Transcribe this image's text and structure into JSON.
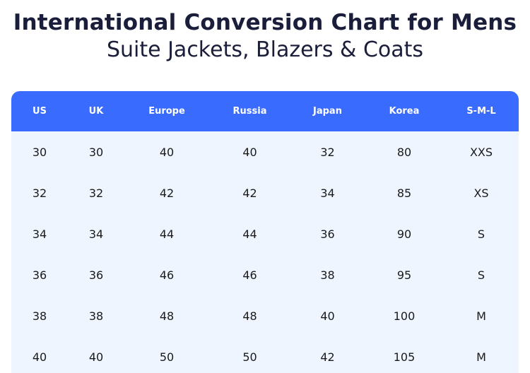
{
  "header": {
    "title": "International Conversion Chart for Mens",
    "subtitle": "Suite Jackets, Blazers & Coats"
  },
  "table": {
    "columns": [
      "US",
      "UK",
      "Europe",
      "Russia",
      "Japan",
      "Korea",
      "S-M-L"
    ],
    "rows": [
      [
        "30",
        "30",
        "40",
        "40",
        "32",
        "80",
        "XXS"
      ],
      [
        "32",
        "32",
        "42",
        "42",
        "34",
        "85",
        "XS"
      ],
      [
        "34",
        "34",
        "44",
        "44",
        "36",
        "90",
        "S"
      ],
      [
        "36",
        "36",
        "46",
        "46",
        "38",
        "95",
        "S"
      ],
      [
        "38",
        "38",
        "48",
        "48",
        "40",
        "100",
        "M"
      ],
      [
        "40",
        "40",
        "50",
        "50",
        "42",
        "105",
        "M"
      ]
    ]
  },
  "colors": {
    "header_bg": "#3a6bff",
    "body_bg": "#eef5ff",
    "title_text": "#1b1e3a"
  }
}
